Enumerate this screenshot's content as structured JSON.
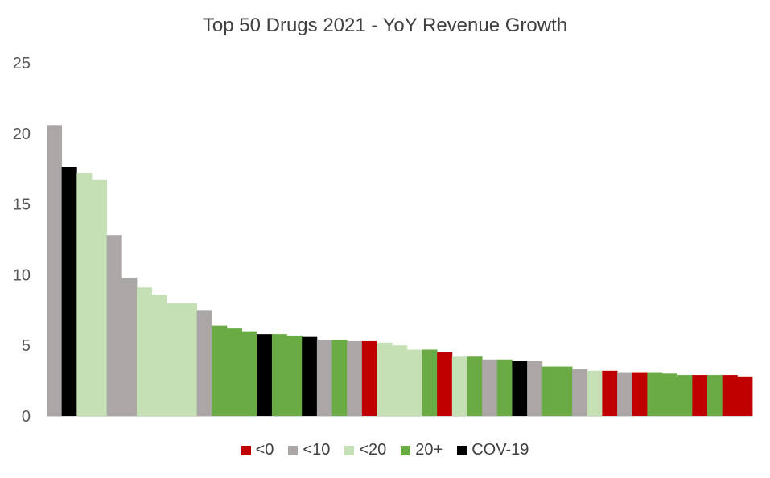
{
  "chart_data": {
    "type": "bar",
    "title": "Top 50 Drugs 2021 - YoY Revenue Growth",
    "xlabel": "",
    "ylabel": "",
    "ylim": [
      0,
      25
    ],
    "yticks": [
      "0",
      "5",
      "10",
      "15",
      "20",
      "25"
    ],
    "ytick_values": [
      0,
      5,
      10,
      15,
      20,
      25
    ],
    "legend": [
      {
        "label": "<0",
        "color": "#C00000"
      },
      {
        "label": "<10",
        "color": "#ABA7A7"
      },
      {
        "label": "<20",
        "color": "#C5E0B4"
      },
      {
        "label": "20+",
        "color": "#6AAB45"
      },
      {
        "label": "COV-19",
        "color": "#000000"
      }
    ],
    "category_colors": {
      "lt0": "#C00000",
      "lt10": "#ABA7A7",
      "lt20": "#C5E0B4",
      "gt20": "#6AAB45",
      "cov": "#000000"
    },
    "bars": [
      {
        "value": 20.6,
        "cat": "lt10"
      },
      {
        "value": 17.6,
        "cat": "cov"
      },
      {
        "value": 17.2,
        "cat": "lt20"
      },
      {
        "value": 16.7,
        "cat": "lt20"
      },
      {
        "value": 12.8,
        "cat": "lt10"
      },
      {
        "value": 9.8,
        "cat": "lt10"
      },
      {
        "value": 9.1,
        "cat": "lt20"
      },
      {
        "value": 8.6,
        "cat": "lt20"
      },
      {
        "value": 8.0,
        "cat": "lt20"
      },
      {
        "value": 8.0,
        "cat": "lt20"
      },
      {
        "value": 7.5,
        "cat": "lt10"
      },
      {
        "value": 6.4,
        "cat": "gt20"
      },
      {
        "value": 6.2,
        "cat": "gt20"
      },
      {
        "value": 6.0,
        "cat": "gt20"
      },
      {
        "value": 5.8,
        "cat": "cov"
      },
      {
        "value": 5.8,
        "cat": "gt20"
      },
      {
        "value": 5.7,
        "cat": "gt20"
      },
      {
        "value": 5.6,
        "cat": "cov"
      },
      {
        "value": 5.4,
        "cat": "lt10"
      },
      {
        "value": 5.4,
        "cat": "gt20"
      },
      {
        "value": 5.3,
        "cat": "lt10"
      },
      {
        "value": 5.3,
        "cat": "lt0"
      },
      {
        "value": 5.2,
        "cat": "lt20"
      },
      {
        "value": 5.0,
        "cat": "lt20"
      },
      {
        "value": 4.7,
        "cat": "lt20"
      },
      {
        "value": 4.7,
        "cat": "gt20"
      },
      {
        "value": 4.5,
        "cat": "lt0"
      },
      {
        "value": 4.2,
        "cat": "lt20"
      },
      {
        "value": 4.2,
        "cat": "gt20"
      },
      {
        "value": 4.0,
        "cat": "lt10"
      },
      {
        "value": 4.0,
        "cat": "gt20"
      },
      {
        "value": 3.9,
        "cat": "cov"
      },
      {
        "value": 3.9,
        "cat": "lt10"
      },
      {
        "value": 3.5,
        "cat": "gt20"
      },
      {
        "value": 3.5,
        "cat": "gt20"
      },
      {
        "value": 3.3,
        "cat": "lt10"
      },
      {
        "value": 3.2,
        "cat": "lt20"
      },
      {
        "value": 3.2,
        "cat": "lt0"
      },
      {
        "value": 3.1,
        "cat": "lt10"
      },
      {
        "value": 3.1,
        "cat": "lt0"
      },
      {
        "value": 3.1,
        "cat": "gt20"
      },
      {
        "value": 3.0,
        "cat": "gt20"
      },
      {
        "value": 2.9,
        "cat": "gt20"
      },
      {
        "value": 2.9,
        "cat": "lt0"
      },
      {
        "value": 2.9,
        "cat": "gt20"
      },
      {
        "value": 2.9,
        "cat": "lt0"
      },
      {
        "value": 2.8,
        "cat": "lt0"
      }
    ]
  }
}
